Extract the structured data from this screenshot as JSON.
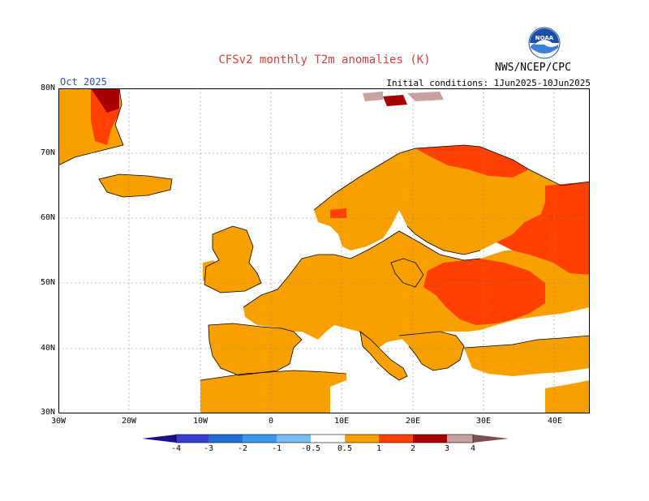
{
  "title": "CFSv2 monthly T2m anomalies (K)",
  "agency": "NWS/NCEP/CPC",
  "valid_label": "Oct 2025",
  "init_label": "Initial conditions: 1Jun2025-10Jun2025",
  "logo_text": "NOAA",
  "map": {
    "lon_range": [
      -30,
      45
    ],
    "lat_range": [
      30,
      80
    ],
    "lat_ticks": [
      "80N",
      "70N",
      "60N",
      "50N",
      "40N",
      "30N"
    ],
    "lon_ticks": [
      "30W",
      "20W",
      "10W",
      "0",
      "10E",
      "20E",
      "30E",
      "40E"
    ],
    "dominant_anomaly": "0.5 to 1 K over most of Europe; 1 to 2 K over eastern Europe and northern Scandinavia/Russia; 2 to 3 K over Greenland"
  },
  "colorbar": {
    "labels": [
      "-4",
      "-3",
      "-2",
      "-1",
      "-0.5",
      "0.5",
      "1",
      "2",
      "3",
      "4"
    ],
    "colors": [
      "#1a0f8f",
      "#3a3fd0",
      "#1e6fd8",
      "#3a99ec",
      "#78bdf5",
      "#ffffff",
      "#f8a000",
      "#ff4000",
      "#a80000",
      "#c8a0a0",
      "#7a5050"
    ]
  },
  "colors": {
    "band_05_1": "#f8a000",
    "band_1_2": "#ff4000",
    "band_2_3": "#a80000",
    "band_3_4": "#c8a0a0",
    "title": "#e03a3a",
    "valid_label": "#2a52be"
  }
}
